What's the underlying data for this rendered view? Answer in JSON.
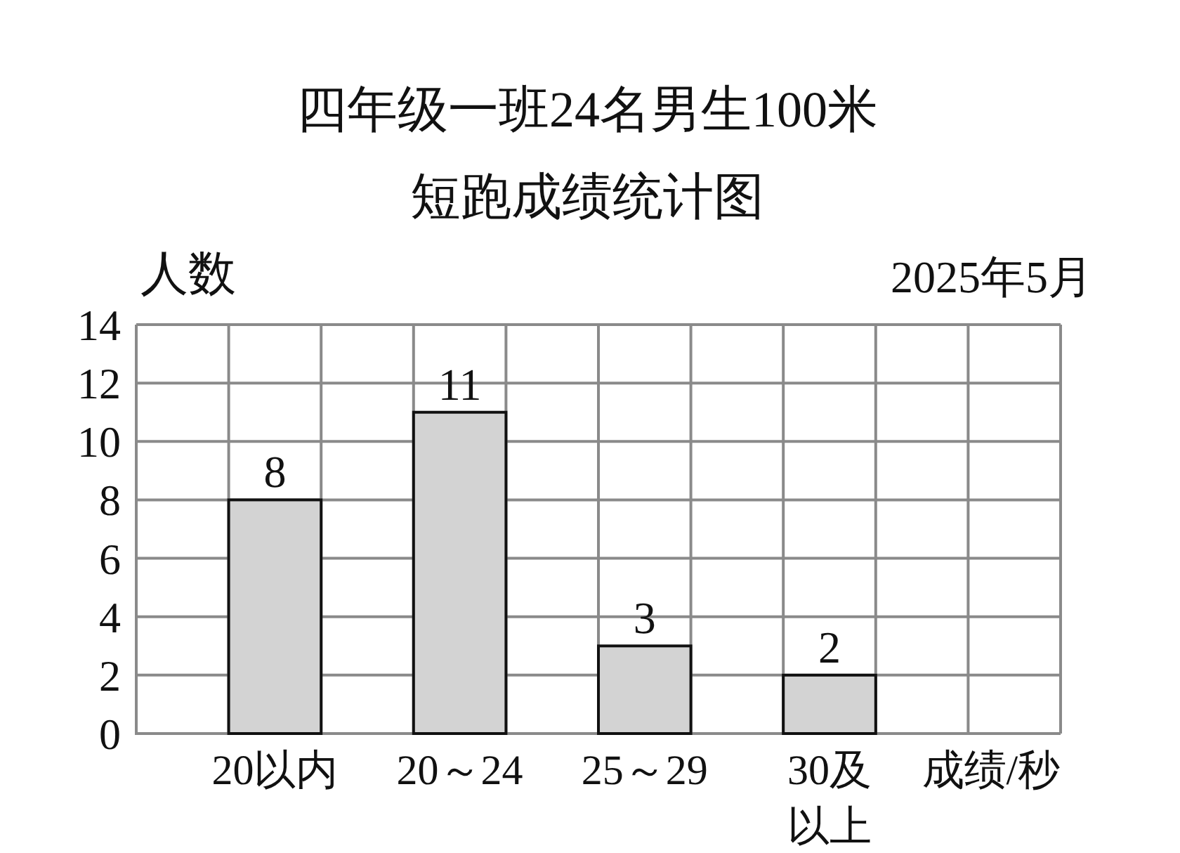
{
  "chart_data": {
    "type": "bar",
    "title": "四年级一班24名男生100米",
    "subtitle": "短跑成绩统计图",
    "ylabel": "人数",
    "xlabel": "成绩/秒",
    "annotations": [
      "2025年5月"
    ],
    "categories": [
      "20以内",
      "20～24",
      "25～29",
      "30及以上"
    ],
    "values": [
      8,
      11,
      3,
      2
    ],
    "color": "#d3d3d3",
    "ylim": [
      0,
      14
    ],
    "yticks": [
      0,
      2,
      4,
      6,
      8,
      10,
      12,
      14
    ],
    "grid": true,
    "data_labels": true
  }
}
